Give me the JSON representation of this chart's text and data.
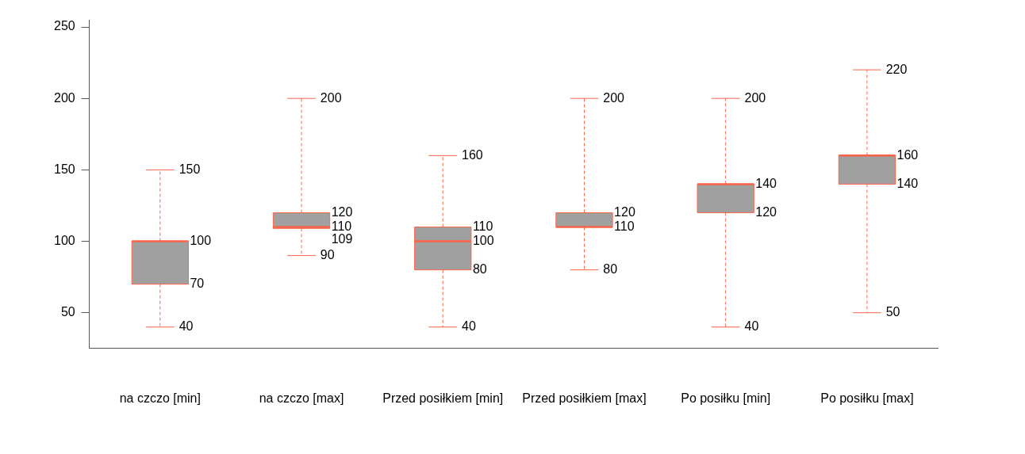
{
  "chart_data": {
    "type": "box",
    "categories": [
      "na czczo [min]",
      "na czczo [max]",
      "Przed posiłkiem [min]",
      "Przed posiłkiem [max]",
      "Po posiłku [min]",
      "Po posiłku [max]"
    ],
    "series": [
      {
        "color": "#a0a0a0",
        "boxes": [
          {
            "low": 40,
            "q1": 70,
            "median": 100,
            "q3": 100,
            "high": 150
          },
          {
            "low": 90,
            "q1": 109,
            "median": 110,
            "q3": 120,
            "high": 200
          },
          {
            "low": 40,
            "q1": 80,
            "median": 100,
            "q3": 110,
            "high": 160
          },
          {
            "low": 80,
            "q1": 110,
            "median": 110,
            "q3": 120,
            "high": 200
          },
          {
            "low": 40,
            "q1": 120,
            "median": 140,
            "q3": 140,
            "high": 200
          },
          {
            "low": 50,
            "q1": 140,
            "median": 160,
            "q3": 160,
            "high": 220
          }
        ]
      }
    ],
    "annotations": [
      {
        "text": "150",
        "x": "na czczo [min]",
        "y": 150
      },
      {
        "text": "100",
        "x": "na czczo [min]",
        "y": 100
      },
      {
        "text": "70",
        "x": "na czczo [min]",
        "y": 70
      },
      {
        "text": "40",
        "x": "na czczo [min]",
        "y": 40
      },
      {
        "text": "200",
        "x": "na czczo [max]",
        "y": 200
      },
      {
        "text": "120",
        "x": "na czczo [max]",
        "y": 120
      },
      {
        "text": "110",
        "x": "na czczo [max]",
        "y": 110
      },
      {
        "text": "109",
        "x": "na czczo [max]",
        "y": 109
      },
      {
        "text": "90",
        "x": "na czczo [max]",
        "y": 90
      },
      {
        "text": "160",
        "x": "Przed posiłkiem [min]",
        "y": 160
      },
      {
        "text": "110",
        "x": "Przed posiłkiem [min]",
        "y": 110
      },
      {
        "text": "100",
        "x": "Przed posiłkiem [min]",
        "y": 100
      },
      {
        "text": "80",
        "x": "Przed posiłkiem [min]",
        "y": 80
      },
      {
        "text": "40",
        "x": "Przed posiłkiem [min]",
        "y": 40
      },
      {
        "text": "200",
        "x": "Przed posiłkiem [max]",
        "y": 200
      },
      {
        "text": "120",
        "x": "Przed posiłkiem [max]",
        "y": 120
      },
      {
        "text": "110",
        "x": "Przed posiłkiem [max]",
        "y": 110
      },
      {
        "text": "80",
        "x": "Przed posiłkiem [max]",
        "y": 80
      },
      {
        "text": "200",
        "x": "Po posiłku [min]",
        "y": 200
      },
      {
        "text": "140",
        "x": "Po posiłku [min]",
        "y": 140
      },
      {
        "text": "120",
        "x": "Po posiłku [min]",
        "y": 120
      },
      {
        "text": "40",
        "x": "Po posiłku [min]",
        "y": 40
      },
      {
        "text": "220",
        "x": "Po posiłku [max]",
        "y": 220
      },
      {
        "text": "160",
        "x": "Po posiłku [max]",
        "y": 160
      },
      {
        "text": "140",
        "x": "Po posiłku [max]",
        "y": 140
      },
      {
        "text": "50",
        "x": "Po posiłku [max]",
        "y": 50
      }
    ],
    "ylim": [
      25,
      255
    ],
    "yticks": [
      50,
      100,
      150,
      200,
      250
    ],
    "grid": false,
    "legend": false
  }
}
